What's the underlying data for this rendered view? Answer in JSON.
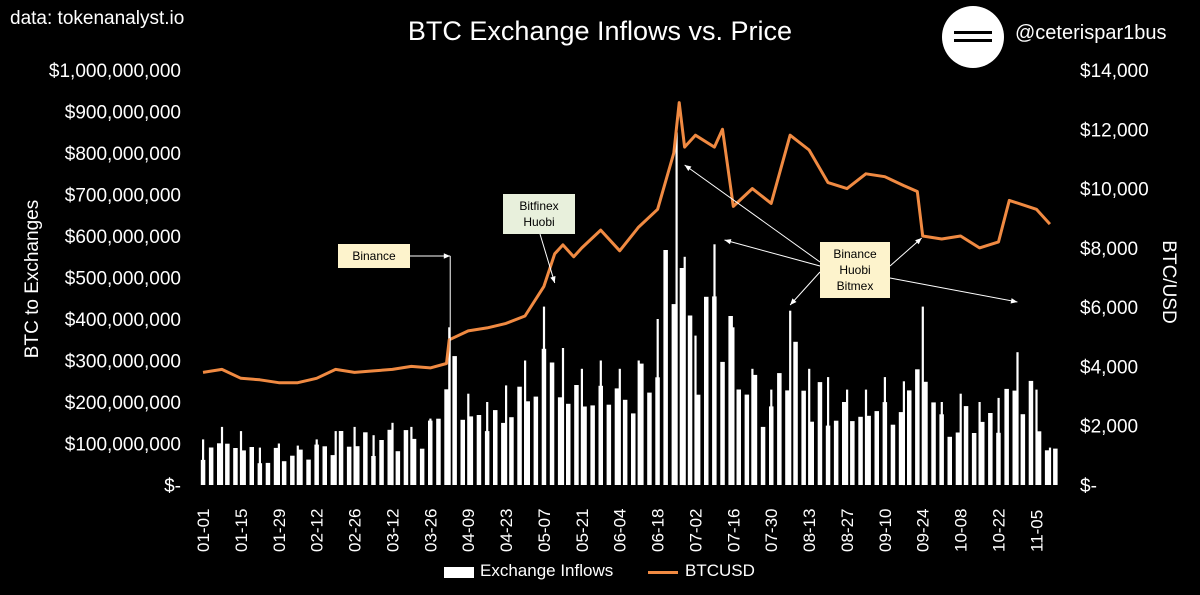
{
  "header": {
    "source": "data: tokenanalyst.io",
    "handle": "@ceterispar1bus"
  },
  "legend": {
    "bars": "Exchange Inflows",
    "line": "BTCUSD"
  },
  "chart_data": {
    "type": "bar",
    "title": "BTC Exchange Inflows vs. Price",
    "ylabel": "BTC to Exchanges",
    "ylabel_right": "BTC/USD",
    "ylim": [
      0,
      1000000000
    ],
    "ylim_right": [
      0,
      14000
    ],
    "y_ticks": [
      "$-",
      "$100,000,000",
      "$200,000,000",
      "$300,000,000",
      "$400,000,000",
      "$500,000,000",
      "$600,000,000",
      "$700,000,000",
      "$800,000,000",
      "$900,000,000",
      "$1,000,000,000"
    ],
    "y_right_ticks": [
      "$-",
      "$2,000",
      "$4,000",
      "$6,000",
      "$8,000",
      "$10,000",
      "$12,000",
      "$14,000"
    ],
    "x_tick_labels": [
      "01-01",
      "01-15",
      "01-29",
      "02-12",
      "02-26",
      "03-12",
      "03-26",
      "04-09",
      "04-23",
      "05-07",
      "05-21",
      "06-04",
      "06-18",
      "07-02",
      "07-16",
      "07-30",
      "08-13",
      "08-27",
      "09-10",
      "09-24",
      "10-08",
      "10-22",
      "11-05"
    ],
    "grid": false,
    "legend_position": "bottom",
    "colors": {
      "bars": "#ffffff",
      "line": "#f08a42",
      "background": "#000000"
    },
    "series": [
      {
        "name": "Exchange Inflows",
        "type": "bar",
        "axis": "left",
        "x": [
          "01-01",
          "01-08",
          "01-15",
          "01-22",
          "01-29",
          "02-05",
          "02-12",
          "02-19",
          "02-26",
          "03-05",
          "03-12",
          "03-19",
          "03-26",
          "04-02",
          "04-09",
          "04-16",
          "04-23",
          "04-30",
          "05-07",
          "05-14",
          "05-21",
          "05-28",
          "06-04",
          "06-11",
          "06-18",
          "06-25",
          "06-28",
          "07-02",
          "07-09",
          "07-16",
          "07-23",
          "07-30",
          "08-06",
          "08-13",
          "08-20",
          "08-27",
          "09-03",
          "09-10",
          "09-17",
          "09-24",
          "10-01",
          "10-08",
          "10-15",
          "10-22",
          "10-29",
          "11-05",
          "11-10"
        ],
        "values": [
          110000000,
          140000000,
          130000000,
          90000000,
          100000000,
          95000000,
          110000000,
          130000000,
          140000000,
          120000000,
          150000000,
          140000000,
          160000000,
          380000000,
          220000000,
          200000000,
          240000000,
          300000000,
          430000000,
          330000000,
          280000000,
          300000000,
          280000000,
          300000000,
          400000000,
          850000000,
          550000000,
          360000000,
          580000000,
          380000000,
          280000000,
          230000000,
          420000000,
          280000000,
          260000000,
          230000000,
          230000000,
          260000000,
          250000000,
          430000000,
          200000000,
          220000000,
          200000000,
          210000000,
          320000000,
          230000000,
          90000000
        ]
      },
      {
        "name": "BTCUSD",
        "type": "line",
        "axis": "right",
        "x": [
          "01-01",
          "01-08",
          "01-15",
          "01-22",
          "01-29",
          "02-05",
          "02-12",
          "02-19",
          "02-26",
          "03-05",
          "03-12",
          "03-19",
          "03-26",
          "04-01",
          "04-02",
          "04-09",
          "04-16",
          "04-23",
          "04-30",
          "05-07",
          "05-11",
          "05-14",
          "05-18",
          "05-21",
          "05-28",
          "06-04",
          "06-11",
          "06-18",
          "06-24",
          "06-26",
          "06-28",
          "07-02",
          "07-09",
          "07-12",
          "07-16",
          "07-23",
          "07-30",
          "08-06",
          "08-13",
          "08-20",
          "08-27",
          "09-03",
          "09-10",
          "09-17",
          "09-22",
          "09-24",
          "10-01",
          "10-08",
          "10-15",
          "10-22",
          "10-26",
          "11-05",
          "11-10"
        ],
        "values": [
          3800,
          3900,
          3600,
          3550,
          3450,
          3450,
          3600,
          3900,
          3800,
          3850,
          3900,
          4000,
          3950,
          4100,
          4900,
          5200,
          5300,
          5450,
          5700,
          6700,
          7800,
          8100,
          7700,
          8000,
          8600,
          7900,
          8700,
          9300,
          11200,
          12900,
          11400,
          11800,
          11400,
          12000,
          9400,
          10000,
          9500,
          11800,
          11300,
          10200,
          10000,
          10500,
          10400,
          10100,
          9900,
          8400,
          8300,
          8400,
          8000,
          8200,
          9600,
          9300,
          8800
        ]
      }
    ],
    "annotations": [
      {
        "text": "Binance",
        "x": "04-02"
      },
      {
        "text": "Bitfinex\nHuobi",
        "x": "05-11"
      },
      {
        "text": "Binance\nHuobi\nBitmex",
        "x": [
          "06-28",
          "07-12",
          "08-06",
          "09-24",
          "10-29"
        ]
      }
    ]
  }
}
